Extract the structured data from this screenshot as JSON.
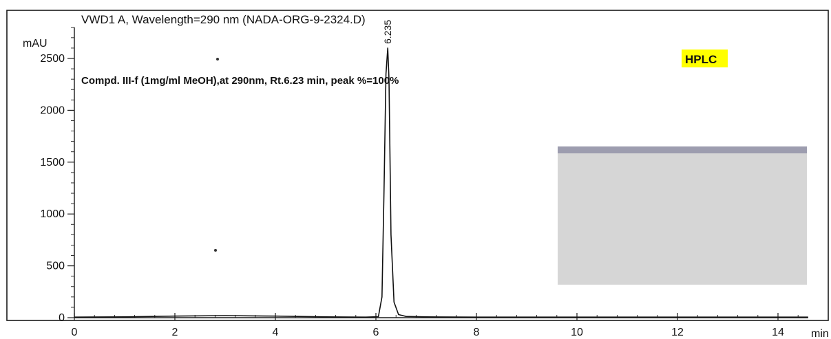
{
  "chart_data": {
    "type": "line",
    "title": "VWD1 A, Wavelength=290 nm (NADA-ORG-9-2324.D)",
    "ylabel": "mAU",
    "xlabel": "min",
    "xlim": [
      0,
      14.6
    ],
    "ylim": [
      0,
      2800
    ],
    "xticks": [
      0,
      2,
      4,
      6,
      8,
      10,
      12,
      14
    ],
    "yticks": [
      0,
      500,
      1000,
      1500,
      2000,
      2500
    ],
    "annotation": "Compd. III-f (1mg/ml MeOH),at 290nm, Rt.6.23 min, peak %=100%",
    "badge": "HPLC",
    "peaks": [
      {
        "label": "6.235",
        "x": 6.235,
        "y": 2600
      }
    ],
    "series": [
      {
        "x": [
          0,
          1,
          2,
          3,
          4,
          5,
          5.8,
          6.05,
          6.12,
          6.16,
          6.2,
          6.235,
          6.26,
          6.3,
          6.36,
          6.45,
          6.6,
          7,
          8,
          9,
          10,
          11,
          12,
          13,
          14,
          14.6
        ],
        "y": [
          5,
          8,
          15,
          20,
          15,
          8,
          5,
          10,
          200,
          1200,
          2350,
          2600,
          2300,
          800,
          150,
          30,
          12,
          8,
          5,
          5,
          5,
          5,
          5,
          5,
          5,
          5
        ]
      }
    ]
  },
  "axis_labels": {
    "x_unit": "min",
    "y_unit": "mAU"
  }
}
